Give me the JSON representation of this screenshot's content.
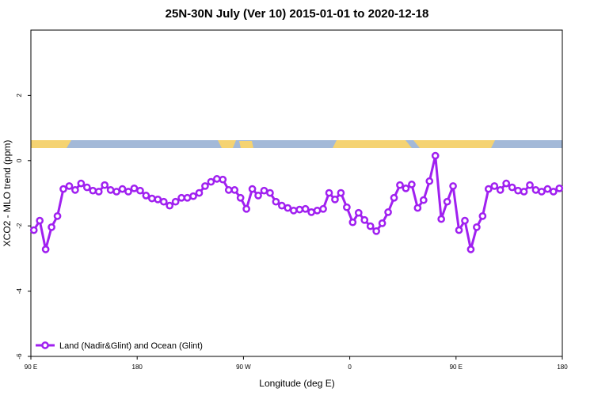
{
  "chart_data": {
    "type": "line",
    "title": "25N-30N July (Ver 10)   2015-01-01 to 2020-12-18",
    "x_label": "Longitude (deg E)",
    "y_label": "XCO2 - MLO trend (ppm)",
    "xlim": [
      90,
      540
    ],
    "ylim": [
      -6,
      4
    ],
    "xticks": [
      {
        "value": 90,
        "label": "90 E"
      },
      {
        "value": 180,
        "label": "180"
      },
      {
        "value": 270,
        "label": "90 W"
      },
      {
        "value": 360,
        "label": "0"
      },
      {
        "value": 450,
        "label": "90 E"
      },
      {
        "value": 540,
        "label": "180"
      }
    ],
    "yticks": [
      -6,
      -4,
      -2,
      0,
      2
    ],
    "legend_position": "bottom-left",
    "series": [
      {
        "name": "Land (Nadir&Glint) and Ocean (Glint)",
        "color": "#a020f0",
        "x": [
          92.5,
          97.5,
          102.5,
          107.5,
          112.5,
          117.5,
          122.5,
          127.5,
          132.5,
          137.5,
          142.5,
          147.5,
          152.5,
          157.5,
          162.5,
          167.5,
          172.5,
          177.5,
          182.5,
          187.5,
          192.5,
          197.5,
          202.5,
          207.5,
          212.5,
          217.5,
          222.5,
          227.5,
          232.5,
          237.5,
          242.5,
          247.5,
          252.5,
          257.5,
          262.5,
          267.5,
          272.5,
          277.5,
          282.5,
          287.5,
          292.5,
          297.5,
          302.5,
          307.5,
          312.5,
          317.5,
          322.5,
          327.5,
          332.5,
          337.5,
          342.5,
          347.5,
          352.5,
          357.5,
          362.5,
          367.5,
          372.5,
          377.5,
          382.5,
          387.5,
          392.5,
          397.5,
          402.5,
          407.5,
          412.5,
          417.5,
          422.5,
          427.5,
          432.5,
          437.5,
          442.5,
          447.5,
          452.5,
          457.5,
          462.5,
          467.5,
          472.5,
          477.5,
          482.5,
          487.5,
          492.5,
          497.5,
          502.5,
          507.5,
          512.5,
          517.5,
          522.5,
          527.5,
          532.5,
          537.5
        ],
        "values": [
          -2.13,
          -1.84,
          -2.72,
          -2.04,
          -1.7,
          -0.87,
          -0.78,
          -0.9,
          -0.7,
          -0.82,
          -0.92,
          -0.95,
          -0.75,
          -0.9,
          -0.95,
          -0.87,
          -0.95,
          -0.85,
          -0.92,
          -1.07,
          -1.16,
          -1.19,
          -1.26,
          -1.38,
          -1.26,
          -1.14,
          -1.14,
          -1.09,
          -0.99,
          -0.78,
          -0.65,
          -0.56,
          -0.58,
          -0.9,
          -0.9,
          -1.14,
          -1.48,
          -0.87,
          -1.07,
          -0.92,
          -0.99,
          -1.26,
          -1.38,
          -1.45,
          -1.53,
          -1.5,
          -1.48,
          -1.58,
          -1.53,
          -1.48,
          -0.99,
          -1.19,
          -0.99,
          -1.43,
          -1.89,
          -1.6,
          -1.82,
          -2.01,
          -2.16,
          -1.92,
          -1.58,
          -1.14,
          -0.75,
          -0.85,
          -0.73,
          -1.45,
          -1.21,
          -0.63,
          0.15,
          -1.79,
          -1.26,
          -0.78,
          -2.13,
          -1.84,
          -2.72,
          -2.04,
          -1.7,
          -0.87,
          -0.78,
          -0.9,
          -0.7,
          -0.82,
          -0.92,
          -0.95,
          -0.75,
          -0.9,
          -0.95,
          -0.87,
          -0.95,
          -0.85
        ]
      }
    ]
  }
}
